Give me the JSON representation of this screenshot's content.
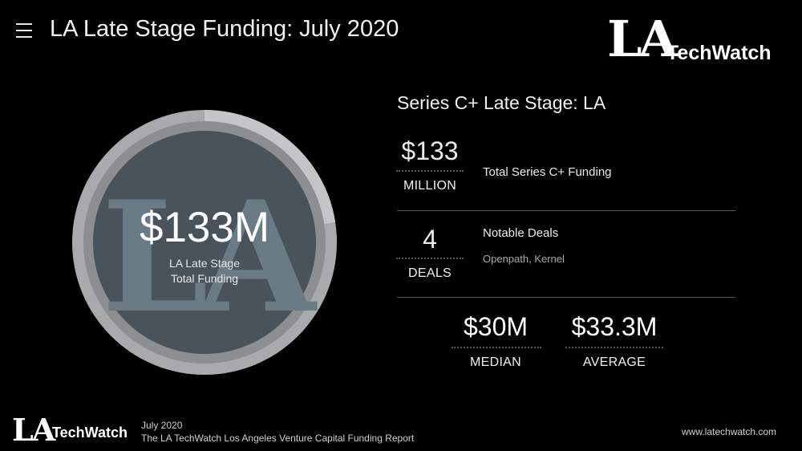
{
  "header": {
    "menu_icon": "hamburger-menu-icon",
    "title": "LA Late Stage Funding: July 2020"
  },
  "logo": {
    "la": "LA",
    "techwatch": "TechWatch"
  },
  "gauge": {
    "value": "$133M",
    "label_line1": "LA Late Stage",
    "label_line2": "Total Funding",
    "watermark": "LA",
    "colors": {
      "outer_ring": "#a9aaab",
      "inner_ring": "#8c8e90",
      "core": "#48535c",
      "watermark": "#6b7b85",
      "light_segment": "#c4c5c6"
    }
  },
  "panel": {
    "title": "Series C+ Late Stage: LA",
    "funding": {
      "value": "$133",
      "unit": "MILLION",
      "description": "Total Series C+ Funding"
    },
    "deals": {
      "value": "4",
      "unit": "DEALS",
      "description": "Notable Deals",
      "detail": "Openpath, Kernel"
    },
    "median": {
      "value": "$30M",
      "label": "MEDIAN"
    },
    "average": {
      "value": "$33.3M",
      "label": "AVERAGE"
    }
  },
  "footer": {
    "date": "July 2020",
    "report": "The LA TechWatch Los Angeles Venture Capital Funding Report",
    "url": "www.latechwatch.com"
  }
}
